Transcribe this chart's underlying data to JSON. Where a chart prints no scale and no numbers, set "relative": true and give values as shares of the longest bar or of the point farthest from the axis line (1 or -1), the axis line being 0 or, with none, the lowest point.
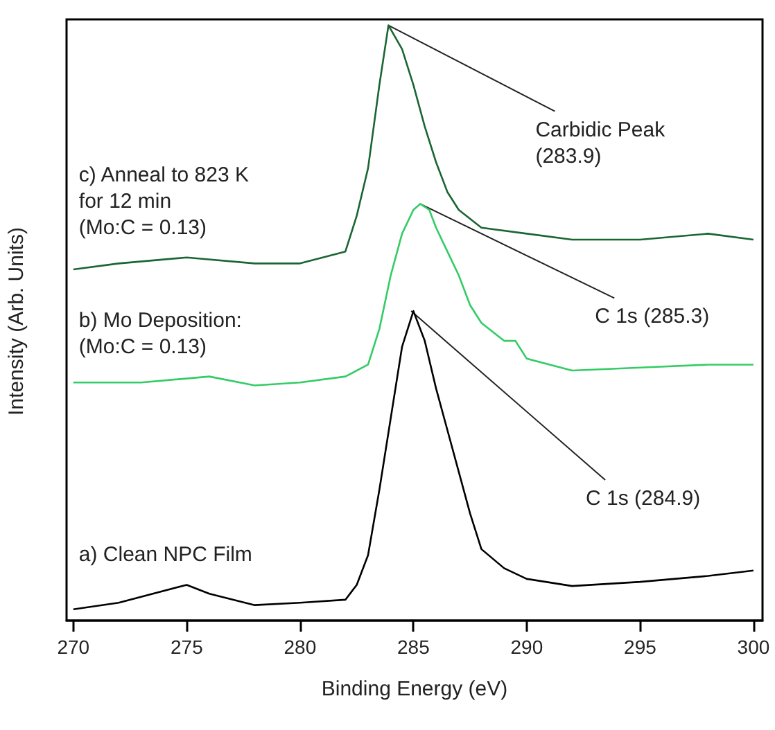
{
  "chart_data": {
    "type": "line",
    "xlabel": "Binding Energy (eV)",
    "ylabel": "Intensity (Arb. Units)",
    "relative": true,
    "xlim": [
      269.7,
      300.4
    ],
    "xticks": [
      270,
      275,
      280,
      285,
      290,
      295,
      300
    ],
    "grid": false,
    "legend": false,
    "marker": "none",
    "line_style": "solid",
    "series": [
      {
        "name": "a) Clean NPC Film",
        "color": "#000000",
        "x": [
          270,
          272,
          275,
          276,
          278,
          280,
          282,
          282.5,
          283,
          283.5,
          284,
          284.5,
          285,
          285.5,
          286,
          286.5,
          287,
          287.5,
          288,
          289,
          290,
          292,
          295,
          298,
          300
        ],
        "values": [
          0.019,
          0.03,
          0.06,
          0.045,
          0.026,
          0.03,
          0.035,
          0.06,
          0.11,
          0.22,
          0.34,
          0.46,
          0.52,
          0.47,
          0.39,
          0.32,
          0.25,
          0.18,
          0.12,
          0.088,
          0.07,
          0.058,
          0.065,
          0.075,
          0.084
        ]
      },
      {
        "name": "b) Mo Deposition:\n(Mo:C = 0.13)",
        "color": "#33cc66",
        "x": [
          270,
          273,
          276,
          278,
          280,
          282,
          283,
          283.5,
          284,
          284.5,
          285,
          285.3,
          285.7,
          286,
          286.5,
          287,
          287.5,
          288,
          289,
          289.5,
          290,
          292,
          295,
          298,
          300
        ],
        "values": [
          0.4,
          0.4,
          0.41,
          0.395,
          0.4,
          0.41,
          0.43,
          0.49,
          0.58,
          0.65,
          0.69,
          0.7,
          0.69,
          0.66,
          0.62,
          0.58,
          0.53,
          0.5,
          0.47,
          0.47,
          0.44,
          0.42,
          0.425,
          0.43,
          0.43
        ]
      },
      {
        "name": "c) Anneal to 823 K\nfor 12 min\n(Mo:C = 0.13)",
        "color": "#1a6633",
        "x": [
          270,
          272,
          275,
          278,
          280,
          282,
          282.5,
          283,
          283.5,
          283.9,
          284.5,
          285,
          285.5,
          286,
          286.5,
          287,
          288,
          290,
          292,
          295,
          298,
          300
        ],
        "values": [
          0.59,
          0.6,
          0.61,
          0.6,
          0.6,
          0.62,
          0.68,
          0.76,
          0.9,
          1.0,
          0.96,
          0.9,
          0.83,
          0.77,
          0.72,
          0.69,
          0.66,
          0.65,
          0.64,
          0.64,
          0.65,
          0.64
        ]
      }
    ],
    "annotations": [
      {
        "text": "Carbidic Peak\n(283.9)",
        "x": 283.9,
        "y": 1.0
      },
      {
        "text": "C 1s (285.3)",
        "x": 285.3,
        "y": 0.7
      },
      {
        "text": "C 1s (284.9)",
        "x": 284.9,
        "y": 0.52
      }
    ]
  }
}
